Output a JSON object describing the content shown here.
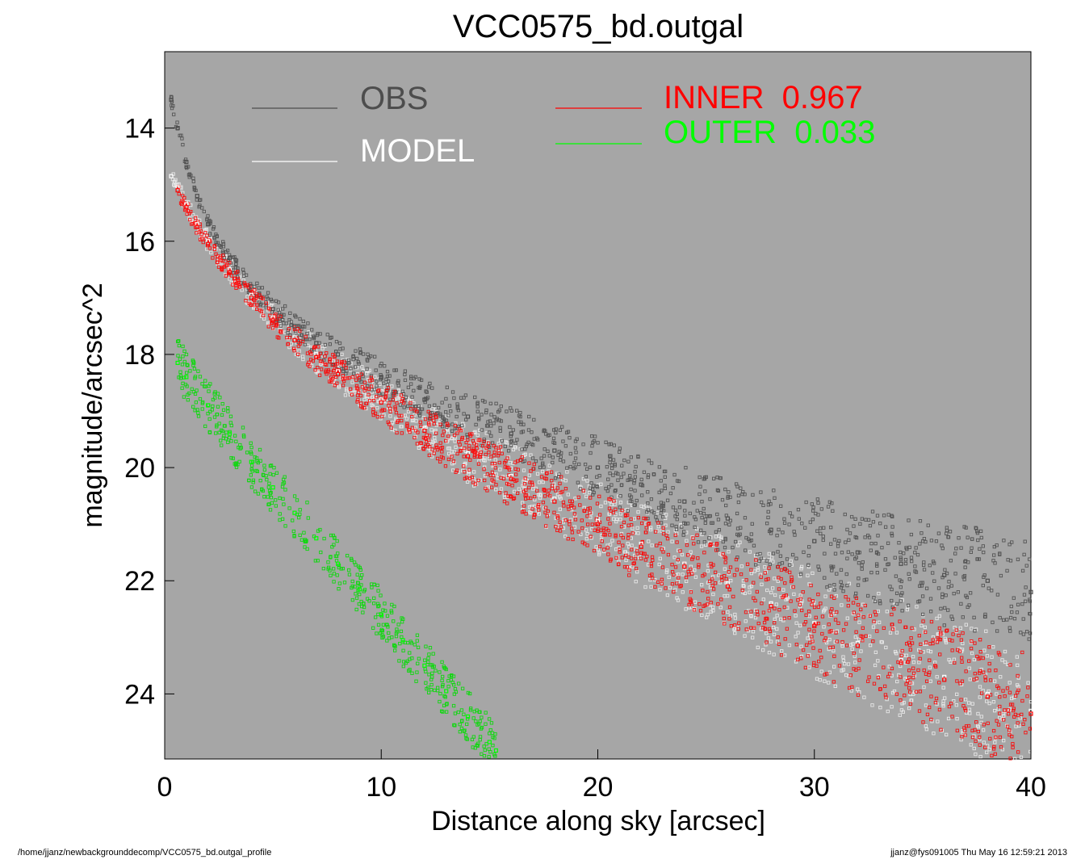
{
  "chart_data": {
    "type": "scatter",
    "title": "VCC0575_bd.outgal",
    "xlabel": "Distance along sky [arcsec]",
    "ylabel": "magnitude/arcsec^2",
    "xlim": [
      0,
      40
    ],
    "ylim": [
      25.15,
      12.65
    ],
    "y_inverted": true,
    "x_ticks": [
      0,
      10,
      20,
      30,
      40
    ],
    "y_ticks": [
      14,
      16,
      18,
      20,
      22,
      24
    ],
    "background_color": "#a6a6a6",
    "grid": false,
    "legend": [
      {
        "label": "OBS",
        "value": "",
        "color": "#4d4d4d"
      },
      {
        "label": "MODEL",
        "value": "",
        "color": "#ffffff"
      },
      {
        "label": "INNER",
        "value": "0.967",
        "color": "#ff0000"
      },
      {
        "label": "OUTER",
        "value": "0.033",
        "color": "#00ff00"
      }
    ],
    "series": [
      {
        "name": "OBS",
        "color": "#4d4d4d",
        "marker": "open-square",
        "x": [
          0.3,
          0.6,
          1.0,
          1.5,
          2.0,
          3.0,
          4.0,
          5.0,
          6.0,
          7.0,
          8.0,
          10.0,
          12.0,
          14.0,
          16.0,
          18.0,
          20.0,
          22.0,
          24.0,
          26.0,
          28.0,
          30.0,
          32.0,
          34.0,
          36.0,
          38.0,
          40.0
        ],
        "y": [
          13.5,
          14.0,
          14.6,
          15.2,
          15.7,
          16.3,
          16.8,
          17.2,
          17.5,
          17.8,
          18.0,
          18.4,
          18.8,
          19.1,
          19.4,
          19.7,
          20.0,
          20.3,
          20.6,
          20.9,
          21.1,
          21.3,
          21.5,
          21.7,
          21.9,
          22.0,
          22.2
        ]
      },
      {
        "name": "MODEL",
        "color": "#ffffff",
        "marker": "open-square",
        "x": [
          0.3,
          0.6,
          1.0,
          1.5,
          2.0,
          3.0,
          4.0,
          5.0,
          6.0,
          7.0,
          8.0,
          10.0,
          12.0,
          14.0,
          16.0,
          18.0,
          20.0,
          22.0,
          24.0,
          26.0,
          28.0,
          30.0,
          32.0,
          34.0,
          36.0,
          38.0,
          40.0
        ],
        "y": [
          14.85,
          15.05,
          15.35,
          15.7,
          16.0,
          16.5,
          16.95,
          17.35,
          17.7,
          18.0,
          18.3,
          18.8,
          19.3,
          19.75,
          20.15,
          20.55,
          20.95,
          21.35,
          21.7,
          22.05,
          22.4,
          22.75,
          23.1,
          23.4,
          23.7,
          24.0,
          24.3
        ]
      },
      {
        "name": "INNER",
        "color": "#ff0000",
        "marker": "open-square",
        "x": [
          0.6,
          1.0,
          1.5,
          2.0,
          3.0,
          4.0,
          5.0,
          6.0,
          7.0,
          8.0,
          10.0,
          12.0,
          14.0,
          16.0,
          18.0,
          20.0,
          22.0,
          24.0,
          26.0,
          28.0,
          30.0,
          32.0,
          34.0,
          36.0,
          38.0,
          40.0
        ],
        "y": [
          15.1,
          15.4,
          15.75,
          16.05,
          16.55,
          17.0,
          17.4,
          17.75,
          18.05,
          18.35,
          18.85,
          19.35,
          19.8,
          20.2,
          20.6,
          21.0,
          21.4,
          21.75,
          22.1,
          22.45,
          22.8,
          23.15,
          23.45,
          23.75,
          24.05,
          24.35
        ]
      },
      {
        "name": "OUTER",
        "color": "#00ff00",
        "marker": "open-square",
        "x": [
          0.6,
          1.0,
          2.0,
          3.0,
          4.0,
          5.0,
          6.0,
          7.0,
          8.0,
          9.0,
          10.0,
          11.0,
          12.0,
          13.0,
          14.0,
          15.0,
          15.3
        ],
        "y": [
          18.15,
          18.4,
          18.9,
          19.4,
          19.9,
          20.35,
          20.8,
          21.25,
          21.7,
          22.15,
          22.6,
          23.05,
          23.5,
          23.95,
          24.4,
          24.85,
          25.0
        ]
      }
    ]
  },
  "footer": {
    "path": "/home/jjanz/newbackgrounddecomp/VCC0575_bd.outgal_profile",
    "stamp": "jjanz@fys091005  Thu May 16 12:59:21 2013"
  }
}
